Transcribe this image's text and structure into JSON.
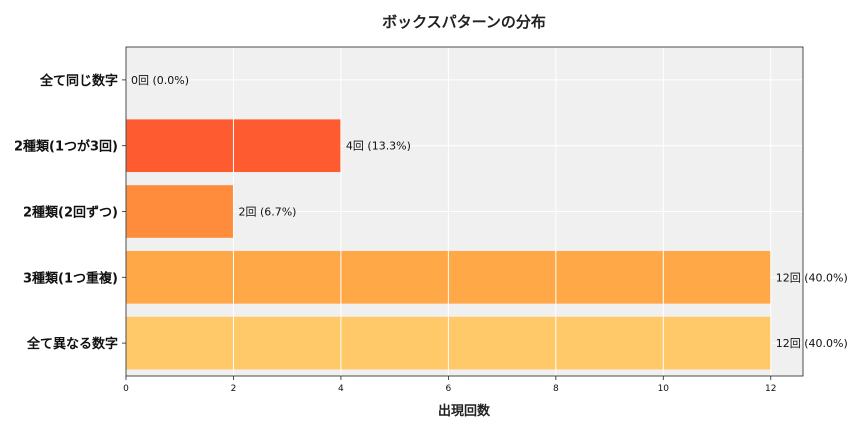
{
  "chart_data": {
    "type": "bar",
    "orientation": "horizontal",
    "title": "ボックスパターンの分布",
    "xlabel": "出現回数",
    "ylabel": "",
    "categories": [
      "全て同じ数字",
      "2種類(1つが3回)",
      "2種類(2回ずつ)",
      "3種類(1つ重複)",
      "全て異なる数字"
    ],
    "values": [
      0,
      4,
      2,
      12,
      12
    ],
    "data_labels": [
      "0回 (0.0%)",
      "4回 (13.3%)",
      "2回 (6.7%)",
      "12回 (40.0%)",
      "12回 (40.0%)"
    ],
    "colors": [
      "#fb3f20",
      "#ff5b30",
      "#ff8c3c",
      "#ffa848",
      "#ffc868"
    ],
    "xlim": [
      0,
      12.6
    ],
    "xticks": [
      "0",
      "2",
      "4",
      "6",
      "8",
      "10",
      "12"
    ],
    "grid": true,
    "background": "#f0f0f0"
  }
}
